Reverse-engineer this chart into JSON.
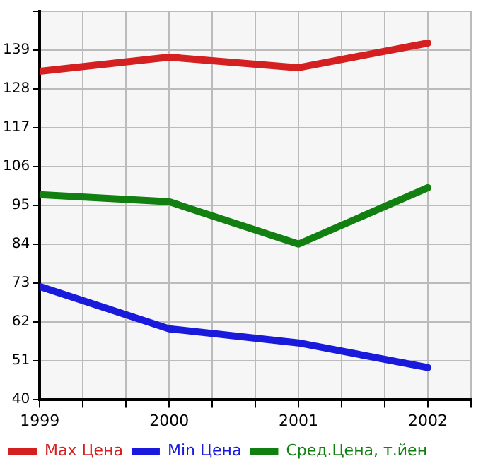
{
  "chart_data": {
    "type": "line",
    "x": [
      1999,
      2000,
      2001,
      2002
    ],
    "xlim": [
      1999,
      2002.333
    ],
    "xticks": [
      1999,
      {
        "value": 1999.333,
        "label": null
      },
      {
        "value": 1999.667,
        "label": null
      },
      2000,
      {
        "value": 2000.333,
        "label": null
      },
      {
        "value": 2000.667,
        "label": null
      },
      2001,
      {
        "value": 2001.333,
        "label": null
      },
      {
        "value": 2001.667,
        "label": null
      },
      2002,
      {
        "value": 2002.333,
        "label": null
      }
    ],
    "ylim": [
      40,
      150
    ],
    "yticks": [
      40,
      51,
      62,
      73,
      84,
      95,
      106,
      117,
      128,
      139,
      {
        "value": 150,
        "label": null
      }
    ],
    "grid": true,
    "legend": "bottom",
    "marker": "none",
    "line_style": "solid",
    "series": [
      {
        "name": "Max Цена",
        "color": "#d42020",
        "values": [
          133,
          137,
          134,
          141
        ]
      },
      {
        "name": "Min Цена",
        "color": "#1a1adc",
        "values": [
          72,
          60,
          56,
          49
        ]
      },
      {
        "name": "Сред.Цена, т.йен",
        "color": "#118011",
        "values": [
          98,
          96,
          84,
          100
        ]
      }
    ]
  }
}
